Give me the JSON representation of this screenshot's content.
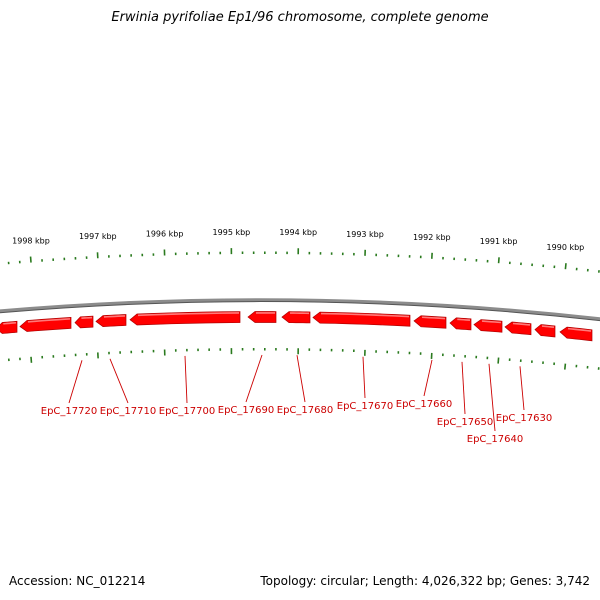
{
  "title": "Erwinia pyrifoliae Ep1/96 chromosome, complete genome",
  "accession": "Accession: NC_012214",
  "summary": "Topology: circular; Length: 4,026,322 bp; Genes: 3,742",
  "colors": {
    "gene_fill": "#ff0000",
    "gene_top": "#ff7a7a",
    "gene_shadow": "#b00000",
    "label": "#cc0000",
    "tick": "#2a7a1e",
    "backbone": "#8c8c8c",
    "backbone_dark": "#555555"
  },
  "ruler": [
    {
      "label": "1998 kbp",
      "kbp": 1998
    },
    {
      "label": "1997 kbp",
      "kbp": 1997
    },
    {
      "label": "1996 kbp",
      "kbp": 1996
    },
    {
      "label": "1995 kbp",
      "kbp": 1995
    },
    {
      "label": "1994 kbp",
      "kbp": 1994
    },
    {
      "label": "1993 kbp",
      "kbp": 1993
    },
    {
      "label": "1992 kbp",
      "kbp": 1992
    },
    {
      "label": "1991 kbp",
      "kbp": 1991
    },
    {
      "label": "1990 kbp",
      "kbp": 1990
    }
  ],
  "genes": [
    {
      "label": "EpC_17720"
    },
    {
      "label": "EpC_17710"
    },
    {
      "label": "EpC_17700"
    },
    {
      "label": "EpC_17690"
    },
    {
      "label": "EpC_17680"
    },
    {
      "label": "EpC_17670"
    },
    {
      "label": "EpC_17660"
    },
    {
      "label": "EpC_17650"
    },
    {
      "label": "EpC_17640"
    },
    {
      "label": "EpC_17630"
    }
  ]
}
